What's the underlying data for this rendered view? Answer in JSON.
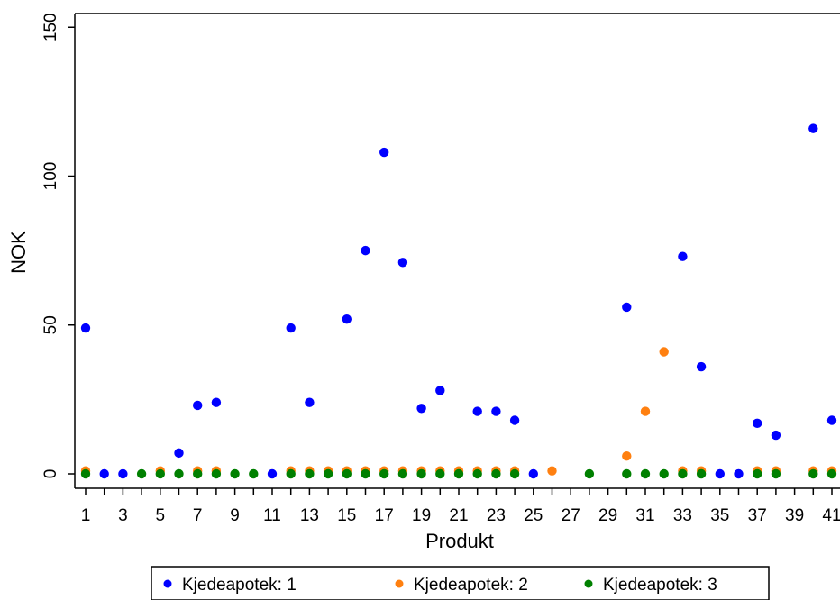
{
  "chart_data": {
    "type": "scatter",
    "xlabel": "Produkt",
    "ylabel": "NOK",
    "xlim": [
      0.65,
      41.6
    ],
    "ylim": [
      -5,
      155
    ],
    "xticks": [
      1,
      3,
      5,
      7,
      9,
      11,
      13,
      15,
      17,
      19,
      21,
      23,
      25,
      27,
      29,
      31,
      33,
      35,
      37,
      39,
      41
    ],
    "yticks": [
      0,
      50,
      100,
      150
    ],
    "grid": false,
    "legend_position": "bottom",
    "series": [
      {
        "name": "Kjedeapotek: 1",
        "color": "#0000ff",
        "points": [
          [
            1,
            49
          ],
          [
            2,
            0
          ],
          [
            3,
            0
          ],
          [
            6,
            7
          ],
          [
            7,
            23
          ],
          [
            8,
            24
          ],
          [
            11,
            0
          ],
          [
            12,
            49
          ],
          [
            13,
            24
          ],
          [
            15,
            52
          ],
          [
            16,
            75
          ],
          [
            17,
            108
          ],
          [
            18,
            71
          ],
          [
            19,
            22
          ],
          [
            20,
            28
          ],
          [
            22,
            21
          ],
          [
            23,
            21
          ],
          [
            24,
            18
          ],
          [
            25,
            0
          ],
          [
            30,
            56
          ],
          [
            33,
            73
          ],
          [
            34,
            36
          ],
          [
            35,
            0
          ],
          [
            36,
            0
          ],
          [
            37,
            17
          ],
          [
            38,
            13
          ],
          [
            40,
            116
          ],
          [
            41,
            18
          ]
        ]
      },
      {
        "name": "Kjedeapotek: 2",
        "color": "#ff8010",
        "points": [
          [
            1,
            1
          ],
          [
            5,
            1
          ],
          [
            7,
            1
          ],
          [
            8,
            1
          ],
          [
            12,
            1
          ],
          [
            13,
            1
          ],
          [
            14,
            1
          ],
          [
            15,
            1
          ],
          [
            16,
            1
          ],
          [
            17,
            1
          ],
          [
            18,
            1
          ],
          [
            19,
            1
          ],
          [
            20,
            1
          ],
          [
            21,
            1
          ],
          [
            22,
            1
          ],
          [
            23,
            1
          ],
          [
            24,
            1
          ],
          [
            26,
            1
          ],
          [
            30,
            6
          ],
          [
            31,
            21
          ],
          [
            32,
            41
          ],
          [
            33,
            1
          ],
          [
            34,
            1
          ],
          [
            37,
            1
          ],
          [
            38,
            1
          ],
          [
            40,
            1
          ],
          [
            41,
            1
          ]
        ]
      },
      {
        "name": "Kjedeapotek: 3",
        "color": "#008000",
        "points": [
          [
            1,
            0
          ],
          [
            4,
            0
          ],
          [
            5,
            0
          ],
          [
            6,
            0
          ],
          [
            7,
            0
          ],
          [
            8,
            0
          ],
          [
            9,
            0
          ],
          [
            10,
            0
          ],
          [
            12,
            0
          ],
          [
            13,
            0
          ],
          [
            14,
            0
          ],
          [
            15,
            0
          ],
          [
            16,
            0
          ],
          [
            17,
            0
          ],
          [
            18,
            0
          ],
          [
            19,
            0
          ],
          [
            20,
            0
          ],
          [
            21,
            0
          ],
          [
            22,
            0
          ],
          [
            23,
            0
          ],
          [
            24,
            0
          ],
          [
            28,
            0
          ],
          [
            30,
            0
          ],
          [
            31,
            0
          ],
          [
            32,
            0
          ],
          [
            33,
            0
          ],
          [
            34,
            0
          ],
          [
            37,
            0
          ],
          [
            38,
            0
          ],
          [
            40,
            0
          ],
          [
            41,
            0
          ]
        ]
      }
    ]
  }
}
